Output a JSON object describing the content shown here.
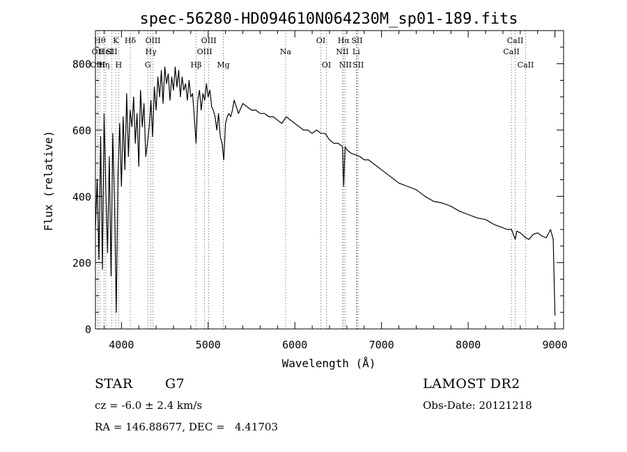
{
  "chart_data": {
    "type": "line",
    "title": "spec-56280-HD094610N064230M_sp01-189.fits",
    "xlabel": "Wavelength (Å)",
    "ylabel": "Flux (relative)",
    "xlim": [
      3700,
      9100
    ],
    "ylim": [
      0,
      900
    ],
    "xticks": [
      4000,
      5000,
      6000,
      7000,
      8000,
      9000
    ],
    "yticks": [
      0,
      200,
      400,
      600,
      800
    ],
    "grid": false,
    "series": [
      {
        "x": [
          3700,
          3720,
          3740,
          3760,
          3780,
          3800,
          3820,
          3840,
          3860,
          3880,
          3900,
          3920,
          3940,
          3960,
          3980,
          4000,
          4020,
          4040,
          4060,
          4080,
          4100,
          4120,
          4140,
          4160,
          4180,
          4200,
          4220,
          4240,
          4260,
          4280,
          4300,
          4320,
          4340,
          4360,
          4380,
          4400,
          4420,
          4440,
          4460,
          4480,
          4500,
          4520,
          4540,
          4560,
          4580,
          4600,
          4620,
          4640,
          4660,
          4680,
          4700,
          4720,
          4740,
          4760,
          4780,
          4800,
          4820,
          4840,
          4860,
          4880,
          4900,
          4920,
          4940,
          4960,
          4980,
          5000,
          5020,
          5040,
          5060,
          5080,
          5100,
          5120,
          5140,
          5160,
          5180,
          5200,
          5220,
          5240,
          5260,
          5280,
          5300,
          5350,
          5400,
          5450,
          5500,
          5550,
          5600,
          5650,
          5700,
          5750,
          5800,
          5850,
          5900,
          5950,
          6000,
          6050,
          6100,
          6150,
          6200,
          6250,
          6300,
          6350,
          6400,
          6450,
          6500,
          6550,
          6563,
          6580,
          6600,
          6650,
          6700,
          6750,
          6800,
          6850,
          6900,
          6950,
          7000,
          7100,
          7200,
          7300,
          7400,
          7500,
          7600,
          7700,
          7800,
          7900,
          8000,
          8100,
          8200,
          8300,
          8400,
          8450,
          8500,
          8542,
          8560,
          8600,
          8662,
          8700,
          8750,
          8800,
          8850,
          8900,
          8950,
          8980,
          9000
        ],
        "y": [
          300,
          450,
          210,
          580,
          180,
          650,
          420,
          230,
          520,
          160,
          590,
          380,
          50,
          470,
          620,
          430,
          640,
          480,
          710,
          520,
          660,
          610,
          700,
          560,
          650,
          490,
          720,
          610,
          680,
          520,
          560,
          610,
          690,
          580,
          730,
          660,
          760,
          700,
          780,
          680,
          790,
          740,
          770,
          690,
          760,
          720,
          790,
          730,
          780,
          700,
          760,
          720,
          740,
          690,
          750,
          700,
          710,
          640,
          560,
          690,
          720,
          660,
          710,
          690,
          740,
          700,
          720,
          670,
          660,
          640,
          600,
          650,
          580,
          560,
          510,
          620,
          640,
          650,
          640,
          660,
          690,
          650,
          680,
          670,
          660,
          660,
          650,
          650,
          640,
          640,
          630,
          620,
          640,
          630,
          620,
          610,
          600,
          600,
          590,
          600,
          590,
          590,
          570,
          560,
          560,
          550,
          430,
          550,
          540,
          530,
          525,
          520,
          510,
          510,
          500,
          490,
          480,
          460,
          440,
          430,
          420,
          400,
          385,
          380,
          370,
          355,
          345,
          335,
          330,
          315,
          305,
          300,
          300,
          270,
          295,
          290,
          275,
          270,
          285,
          290,
          280,
          275,
          300,
          270,
          40
        ],
        "color": "#000000"
      }
    ],
    "lines": [
      {
        "x": 3750,
        "label": "Hθ",
        "row": 0
      },
      {
        "x": 3727,
        "label": "OII",
        "row": 1
      },
      {
        "x": 3727,
        "label": "OIII",
        "row": 2
      },
      {
        "x": 3799,
        "label": "Hη",
        "row": 2
      },
      {
        "x": 3820,
        "label": "HeI",
        "row": 1
      },
      {
        "x": 3889,
        "label": "SII",
        "row": 1
      },
      {
        "x": 3934,
        "label": "K",
        "row": 0
      },
      {
        "x": 3968,
        "label": "H",
        "row": 2
      },
      {
        "x": 4102,
        "label": "Hδ",
        "row": 0
      },
      {
        "x": 4304,
        "label": "G",
        "row": 2
      },
      {
        "x": 4340,
        "label": "Hγ",
        "row": 1
      },
      {
        "x": 4363,
        "label": "OIII",
        "row": 0
      },
      {
        "x": 4861,
        "label": "Hβ",
        "row": 2
      },
      {
        "x": 4959,
        "label": "OIII",
        "row": 1
      },
      {
        "x": 5007,
        "label": "OIII",
        "row": 0
      },
      {
        "x": 5175,
        "label": "Mg",
        "row": 2
      },
      {
        "x": 5893,
        "label": "Na",
        "row": 1
      },
      {
        "x": 6300,
        "label": "OI",
        "row": 0
      },
      {
        "x": 6364,
        "label": "OI",
        "row": 2
      },
      {
        "x": 6548,
        "label": "NII",
        "row": 1
      },
      {
        "x": 6563,
        "label": "Hα",
        "row": 0
      },
      {
        "x": 6583,
        "label": "NII",
        "row": 2
      },
      {
        "x": 6708,
        "label": "Li",
        "row": 1
      },
      {
        "x": 6717,
        "label": "SII",
        "row": 0
      },
      {
        "x": 6731,
        "label": "SII",
        "row": 2
      },
      {
        "x": 8498,
        "label": "CaII",
        "row": 1
      },
      {
        "x": 8542,
        "label": "CaII",
        "row": 0
      },
      {
        "x": 8662,
        "label": "CaII",
        "row": 2
      }
    ]
  },
  "info": {
    "class_label": "STAR",
    "subclass": "G7",
    "redshift": "cz = -6.0 ± 2.4 km/s",
    "coords": "RA = 146.88677, DEC =   4.41703",
    "survey": "LAMOST DR2",
    "obs_date": "Obs-Date: 20121218"
  }
}
